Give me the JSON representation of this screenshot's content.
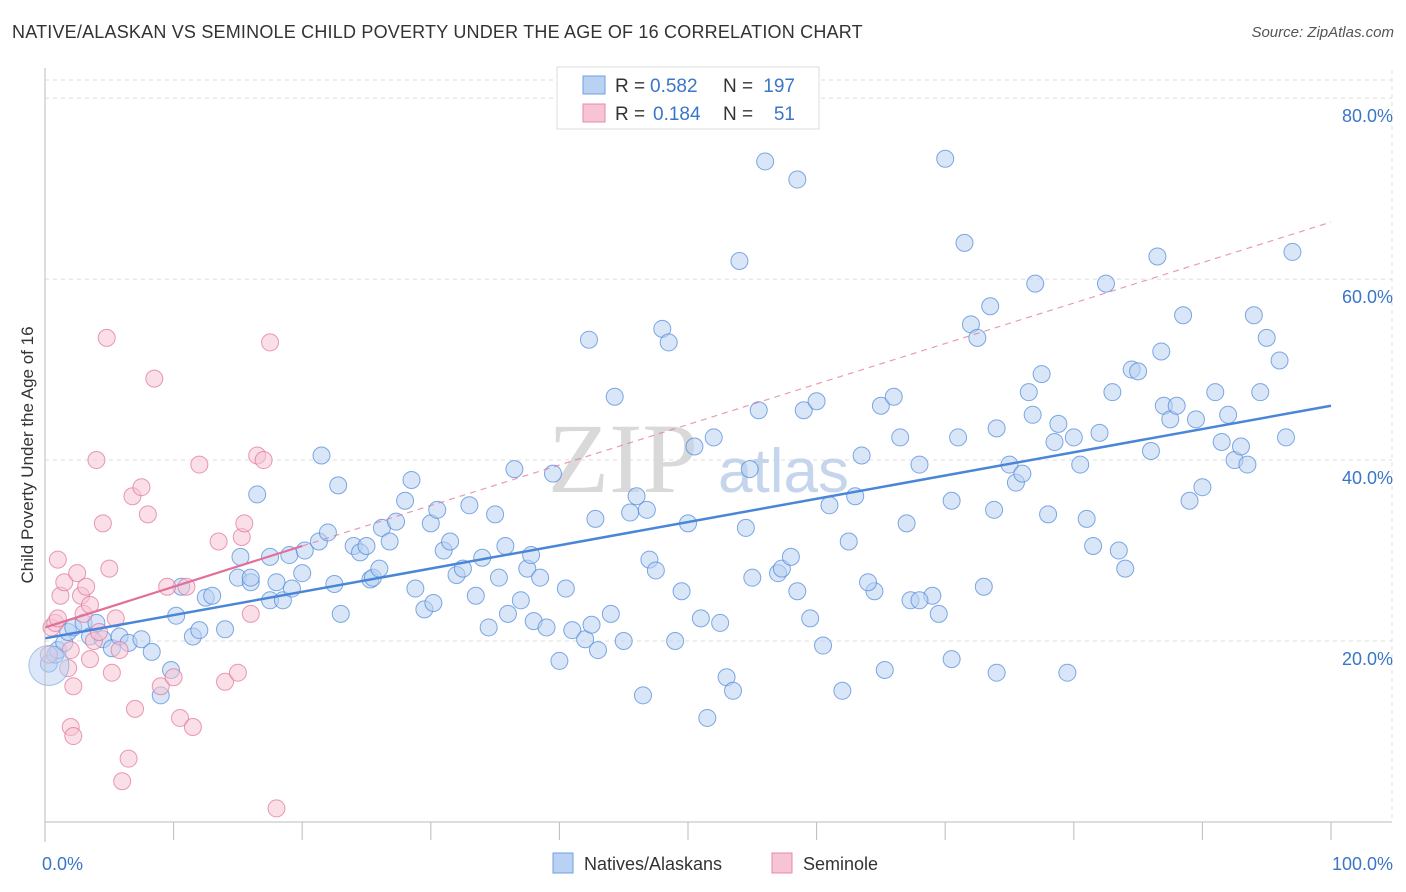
{
  "title": "NATIVE/ALASKAN VS SEMINOLE CHILD POVERTY UNDER THE AGE OF 16 CORRELATION CHART",
  "source": "Source: ZipAtlas.com",
  "watermark": {
    "zip": "ZIP",
    "atlas": "atlas"
  },
  "legend_top": {
    "rows": [
      {
        "r_label": "R =",
        "r_value": "0.582",
        "n_label": "N =",
        "n_value": "197",
        "color": "#6f9fe0",
        "fill": "#b9d1f3"
      },
      {
        "r_label": "R =",
        "r_value": "0.184",
        "n_label": "N =",
        "n_value": "51",
        "color": "#e58aa8",
        "fill": "#f6c4d4"
      }
    ]
  },
  "legend_bottom": [
    {
      "label": "Natives/Alaskans",
      "fill": "#b9d1f3",
      "stroke": "#6f9fe0"
    },
    {
      "label": "Seminole",
      "fill": "#f6c4d4",
      "stroke": "#e58aa8"
    }
  ],
  "chart_data": {
    "type": "scatter",
    "title": "NATIVE/ALASKAN VS SEMINOLE CHILD POVERTY UNDER THE AGE OF 16 CORRELATION CHART",
    "xlabel": "",
    "ylabel": "Child Poverty Under the Age of 16",
    "xlim": [
      0,
      100
    ],
    "ylim": [
      0,
      82
    ],
    "x_tick_labels": [
      {
        "value": 0,
        "label": "0.0%"
      },
      {
        "value": 100,
        "label": "100.0%"
      }
    ],
    "y_tick_labels": [
      {
        "value": 20,
        "label": "20.0%"
      },
      {
        "value": 40,
        "label": "40.0%"
      },
      {
        "value": 60,
        "label": "60.0%"
      },
      {
        "value": 80,
        "label": "80.0%"
      }
    ],
    "series": [
      {
        "name": "Natives/Alaskans",
        "color": "#4a86d8",
        "fill": "#b9d1f3",
        "trend": {
          "x": [
            0,
            100
          ],
          "y": [
            20.3,
            46.0
          ],
          "style": "solid"
        },
        "points": [
          [
            0.3,
            17.5
          ],
          [
            0.8,
            18.5
          ],
          [
            1.0,
            19.0
          ],
          [
            1.5,
            19.8
          ],
          [
            1.8,
            21.0
          ],
          [
            2.2,
            21.5
          ],
          [
            3.0,
            22.0
          ],
          [
            3.5,
            20.5
          ],
          [
            4.0,
            22.0
          ],
          [
            4.5,
            20.2
          ],
          [
            5.2,
            19.2
          ],
          [
            5.8,
            20.5
          ],
          [
            6.5,
            19.8
          ],
          [
            7.5,
            20.2
          ],
          [
            8.3,
            18.8
          ],
          [
            9.0,
            14.0
          ],
          [
            9.8,
            16.8
          ],
          [
            10.6,
            26.0
          ],
          [
            10.2,
            22.8
          ],
          [
            11.5,
            20.5
          ],
          [
            12.0,
            21.2
          ],
          [
            12.5,
            24.8
          ],
          [
            13.0,
            25.0
          ],
          [
            14.0,
            21.3
          ],
          [
            15.0,
            27.0
          ],
          [
            15.2,
            29.3
          ],
          [
            16.0,
            26.5
          ],
          [
            16.0,
            27.0
          ],
          [
            16.5,
            36.2
          ],
          [
            17.5,
            29.3
          ],
          [
            17.5,
            24.5
          ],
          [
            18.0,
            26.5
          ],
          [
            18.5,
            24.5
          ],
          [
            19.0,
            29.5
          ],
          [
            19.2,
            25.8
          ],
          [
            20.0,
            27.5
          ],
          [
            20.2,
            30.0
          ],
          [
            21.3,
            31.0
          ],
          [
            21.5,
            40.5
          ],
          [
            22.0,
            32.0
          ],
          [
            22.5,
            26.3
          ],
          [
            22.8,
            37.2
          ],
          [
            23.0,
            23.0
          ],
          [
            24.0,
            30.5
          ],
          [
            24.5,
            29.8
          ],
          [
            25.0,
            30.5
          ],
          [
            25.3,
            26.8
          ],
          [
            25.5,
            27.0
          ],
          [
            26.0,
            28.0
          ],
          [
            26.2,
            32.5
          ],
          [
            26.8,
            31.0
          ],
          [
            27.3,
            33.2
          ],
          [
            28.0,
            35.5
          ],
          [
            28.5,
            37.8
          ],
          [
            28.8,
            25.8
          ],
          [
            29.5,
            23.5
          ],
          [
            30.0,
            33.0
          ],
          [
            30.2,
            24.2
          ],
          [
            30.5,
            34.5
          ],
          [
            31.0,
            30.0
          ],
          [
            31.5,
            31.0
          ],
          [
            32.0,
            27.3
          ],
          [
            32.5,
            28.0
          ],
          [
            33.0,
            35.0
          ],
          [
            33.5,
            25.0
          ],
          [
            34.0,
            29.2
          ],
          [
            34.5,
            21.5
          ],
          [
            35.0,
            34.0
          ],
          [
            35.3,
            27.0
          ],
          [
            35.8,
            30.5
          ],
          [
            36.0,
            23.0
          ],
          [
            36.5,
            39.0
          ],
          [
            37.0,
            24.5
          ],
          [
            37.5,
            28.0
          ],
          [
            37.8,
            29.5
          ],
          [
            38.0,
            22.2
          ],
          [
            38.5,
            27.0
          ],
          [
            39.0,
            21.5
          ],
          [
            39.5,
            38.5
          ],
          [
            40.0,
            17.8
          ],
          [
            40.5,
            25.8
          ],
          [
            41.0,
            21.2
          ],
          [
            42.0,
            20.2
          ],
          [
            42.3,
            53.3
          ],
          [
            42.5,
            21.8
          ],
          [
            42.8,
            33.5
          ],
          [
            43.0,
            19.0
          ],
          [
            44.0,
            23.0
          ],
          [
            44.3,
            47.0
          ],
          [
            45.0,
            20.0
          ],
          [
            45.5,
            34.2
          ],
          [
            46.0,
            36.0
          ],
          [
            46.5,
            14.0
          ],
          [
            46.8,
            34.5
          ],
          [
            47.0,
            29.0
          ],
          [
            47.5,
            27.8
          ],
          [
            48.0,
            54.5
          ],
          [
            48.5,
            53.0
          ],
          [
            49.0,
            20.0
          ],
          [
            49.5,
            25.5
          ],
          [
            50.0,
            33.0
          ],
          [
            50.5,
            41.5
          ],
          [
            51.0,
            22.5
          ],
          [
            51.5,
            11.5
          ],
          [
            52.0,
            42.5
          ],
          [
            52.5,
            22.0
          ],
          [
            53.0,
            16.0
          ],
          [
            53.5,
            14.5
          ],
          [
            54.0,
            62.0
          ],
          [
            54.5,
            32.5
          ],
          [
            54.8,
            39.0
          ],
          [
            55.0,
            27.0
          ],
          [
            55.5,
            45.5
          ],
          [
            56.0,
            73.0
          ],
          [
            57.0,
            27.5
          ],
          [
            57.3,
            28.0
          ],
          [
            58.0,
            29.3
          ],
          [
            58.5,
            71.0
          ],
          [
            59.0,
            45.5
          ],
          [
            59.5,
            22.5
          ],
          [
            60.0,
            46.5
          ],
          [
            60.5,
            19.5
          ],
          [
            61.0,
            35.0
          ],
          [
            62.0,
            14.5
          ],
          [
            62.5,
            31.0
          ],
          [
            63.0,
            36.0
          ],
          [
            63.5,
            40.5
          ],
          [
            64.5,
            25.5
          ],
          [
            65.0,
            46.0
          ],
          [
            65.3,
            16.8
          ],
          [
            66.0,
            47.0
          ],
          [
            66.5,
            42.5
          ],
          [
            67.0,
            33.0
          ],
          [
            67.3,
            24.5
          ],
          [
            68.0,
            39.5
          ],
          [
            69.0,
            25.0
          ],
          [
            69.5,
            23.0
          ],
          [
            70.0,
            73.3
          ],
          [
            70.5,
            35.5
          ],
          [
            71.0,
            42.5
          ],
          [
            71.5,
            64.0
          ],
          [
            72.0,
            55.0
          ],
          [
            72.5,
            53.5
          ],
          [
            73.0,
            26.0
          ],
          [
            73.5,
            57.0
          ],
          [
            73.8,
            34.5
          ],
          [
            74.0,
            43.5
          ],
          [
            75.0,
            39.5
          ],
          [
            75.5,
            37.5
          ],
          [
            76.0,
            38.5
          ],
          [
            76.5,
            47.5
          ],
          [
            76.8,
            45.0
          ],
          [
            77.0,
            59.5
          ],
          [
            77.5,
            49.5
          ],
          [
            78.0,
            34.0
          ],
          [
            78.5,
            42.0
          ],
          [
            78.8,
            44.0
          ],
          [
            79.5,
            16.5
          ],
          [
            80.0,
            42.5
          ],
          [
            80.5,
            39.5
          ],
          [
            81.0,
            33.5
          ],
          [
            81.5,
            30.5
          ],
          [
            82.0,
            43.0
          ],
          [
            82.5,
            59.5
          ],
          [
            83.0,
            47.5
          ],
          [
            83.5,
            30.0
          ],
          [
            84.0,
            28.0
          ],
          [
            84.5,
            50.0
          ],
          [
            85.0,
            49.8
          ],
          [
            86.0,
            41.0
          ],
          [
            86.5,
            62.5
          ],
          [
            86.8,
            52.0
          ],
          [
            87.0,
            46.0
          ],
          [
            87.5,
            44.5
          ],
          [
            88.0,
            46.0
          ],
          [
            88.5,
            56.0
          ],
          [
            89.0,
            35.5
          ],
          [
            89.5,
            44.5
          ],
          [
            90.0,
            37.0
          ],
          [
            91.0,
            47.5
          ],
          [
            91.5,
            42.0
          ],
          [
            92.0,
            45.0
          ],
          [
            92.5,
            40.0
          ],
          [
            93.0,
            41.5
          ],
          [
            93.5,
            39.5
          ],
          [
            94.0,
            56.0
          ],
          [
            94.5,
            47.5
          ],
          [
            95.0,
            53.5
          ],
          [
            96.0,
            51.0
          ],
          [
            96.5,
            42.5
          ],
          [
            97.0,
            63.0
          ],
          [
            74.0,
            16.5
          ],
          [
            68.0,
            24.5
          ],
          [
            70.5,
            18.0
          ],
          [
            64.0,
            26.5
          ],
          [
            58.5,
            25.5
          ]
        ]
      },
      {
        "name": "Seminole",
        "color": "#e0709a",
        "fill": "#f6c4d4",
        "trend": {
          "x": [
            0,
            20
          ],
          "y": [
            21.5,
            30.5
          ],
          "style": "solid",
          "extended": {
            "x": [
              20,
              100
            ],
            "y": [
              30.5,
              66.3
            ],
            "style": "dashed"
          }
        },
        "points": [
          [
            0.3,
            18.5
          ],
          [
            0.5,
            21.5
          ],
          [
            0.8,
            22.0
          ],
          [
            1.0,
            29.0
          ],
          [
            1.2,
            25.0
          ],
          [
            1.5,
            26.5
          ],
          [
            1.8,
            17.0
          ],
          [
            2.0,
            19.0
          ],
          [
            2.2,
            15.0
          ],
          [
            2.5,
            27.5
          ],
          [
            2.8,
            25.0
          ],
          [
            3.0,
            23.0
          ],
          [
            3.2,
            26.0
          ],
          [
            3.5,
            18.0
          ],
          [
            3.8,
            20.0
          ],
          [
            4.0,
            40.0
          ],
          [
            4.2,
            21.0
          ],
          [
            4.5,
            33.0
          ],
          [
            4.8,
            53.5
          ],
          [
            5.0,
            28.0
          ],
          [
            5.2,
            16.5
          ],
          [
            5.5,
            22.5
          ],
          [
            5.8,
            19.0
          ],
          [
            6.0,
            4.5
          ],
          [
            6.5,
            7.0
          ],
          [
            6.8,
            36.0
          ],
          [
            7.0,
            12.5
          ],
          [
            7.5,
            37.0
          ],
          [
            8.0,
            34.0
          ],
          [
            8.5,
            49.0
          ],
          [
            9.0,
            15.0
          ],
          [
            9.5,
            26.0
          ],
          [
            10.0,
            16.0
          ],
          [
            10.5,
            11.5
          ],
          [
            11.0,
            26.0
          ],
          [
            11.5,
            10.5
          ],
          [
            12.0,
            39.5
          ],
          [
            13.5,
            31.0
          ],
          [
            14.0,
            15.5
          ],
          [
            15.0,
            16.5
          ],
          [
            15.3,
            31.5
          ],
          [
            15.5,
            33.0
          ],
          [
            16.0,
            23.0
          ],
          [
            16.5,
            40.5
          ],
          [
            17.0,
            40.0
          ],
          [
            17.5,
            53.0
          ],
          [
            18.0,
            1.5
          ],
          [
            2.0,
            10.5
          ],
          [
            2.2,
            9.5
          ],
          [
            3.5,
            24.0
          ],
          [
            1.0,
            22.5
          ]
        ]
      }
    ]
  }
}
